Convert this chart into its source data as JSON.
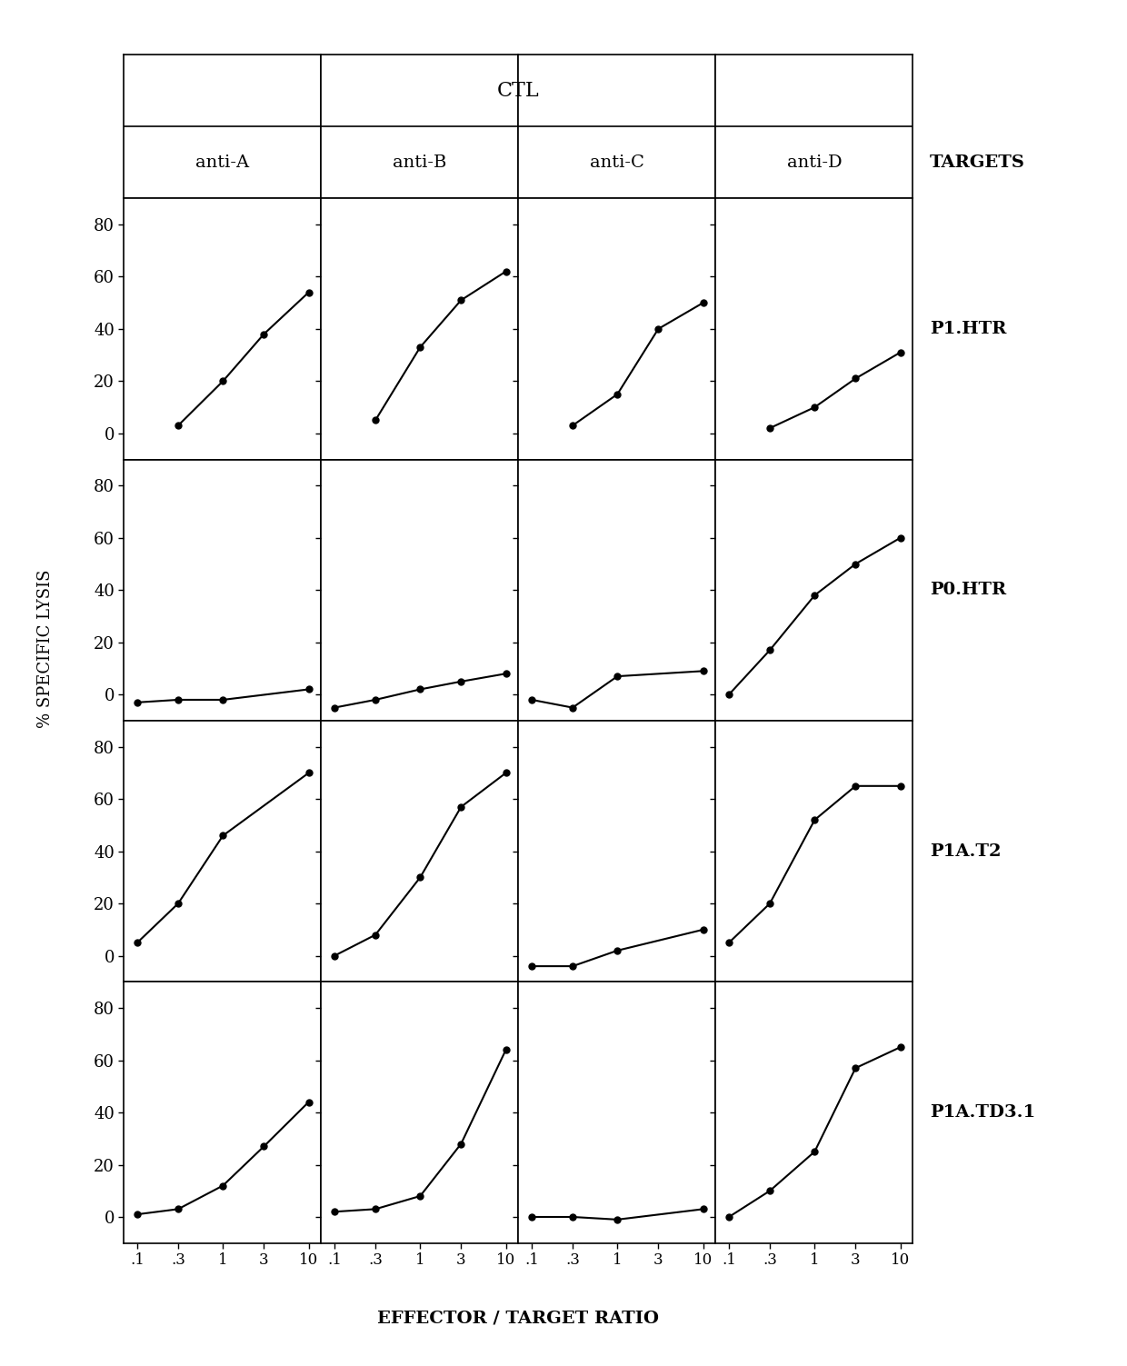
{
  "rows": [
    "P1.HTR",
    "P0.HTR",
    "P1A.T2",
    "P1A.TD3.1"
  ],
  "cols": [
    "anti-A",
    "anti-B",
    "anti-C",
    "anti-D"
  ],
  "x_ticks": [
    0.1,
    0.3,
    1,
    3,
    10
  ],
  "x_tick_labels": [
    ".1",
    ".3",
    "1",
    "3",
    "10"
  ],
  "ylim": [
    -10,
    90
  ],
  "yticks": [
    0,
    20,
    40,
    60,
    80
  ],
  "data": {
    "P1.HTR": {
      "anti-A": {
        "x": [
          0.3,
          1,
          3,
          10
        ],
        "y": [
          3,
          20,
          38,
          54
        ]
      },
      "anti-B": {
        "x": [
          0.3,
          1,
          3,
          10
        ],
        "y": [
          5,
          33,
          51,
          62
        ]
      },
      "anti-C": {
        "x": [
          0.3,
          1,
          3,
          10
        ],
        "y": [
          3,
          15,
          40,
          50
        ]
      },
      "anti-D": {
        "x": [
          0.3,
          1,
          3,
          10
        ],
        "y": [
          2,
          10,
          21,
          31
        ]
      }
    },
    "P0.HTR": {
      "anti-A": {
        "x": [
          0.1,
          0.3,
          1,
          10
        ],
        "y": [
          -3,
          -2,
          -2,
          2
        ]
      },
      "anti-B": {
        "x": [
          0.1,
          0.3,
          1,
          3,
          10
        ],
        "y": [
          -5,
          -2,
          2,
          5,
          8
        ]
      },
      "anti-C": {
        "x": [
          0.1,
          0.3,
          1,
          10
        ],
        "y": [
          -2,
          -5,
          7,
          9
        ]
      },
      "anti-D": {
        "x": [
          0.1,
          0.3,
          1,
          3,
          10
        ],
        "y": [
          0,
          17,
          38,
          50,
          60
        ]
      }
    },
    "P1A.T2": {
      "anti-A": {
        "x": [
          0.1,
          0.3,
          1,
          10
        ],
        "y": [
          5,
          20,
          46,
          70
        ]
      },
      "anti-B": {
        "x": [
          0.1,
          0.3,
          1,
          3,
          10
        ],
        "y": [
          0,
          8,
          30,
          57,
          70
        ]
      },
      "anti-C": {
        "x": [
          0.1,
          0.3,
          1,
          10
        ],
        "y": [
          -4,
          -4,
          2,
          10
        ]
      },
      "anti-D": {
        "x": [
          0.1,
          0.3,
          1,
          3,
          10
        ],
        "y": [
          5,
          20,
          52,
          65,
          65
        ]
      }
    },
    "P1A.TD3.1": {
      "anti-A": {
        "x": [
          0.1,
          0.3,
          1,
          3,
          10
        ],
        "y": [
          1,
          3,
          12,
          27,
          44
        ]
      },
      "anti-B": {
        "x": [
          0.1,
          0.3,
          1,
          3,
          10
        ],
        "y": [
          2,
          3,
          8,
          28,
          64
        ]
      },
      "anti-C": {
        "x": [
          0.1,
          0.3,
          1,
          10
        ],
        "y": [
          0,
          0,
          -1,
          3
        ]
      },
      "anti-D": {
        "x": [
          0.1,
          0.3,
          1,
          3,
          10
        ],
        "y": [
          0,
          10,
          25,
          57,
          65
        ]
      }
    }
  },
  "title": "CTL",
  "xlabel": "EFFECTOR / TARGET RATIO",
  "ylabel": "% SPECIFIC LYSIS",
  "right_labels": [
    "TARGETS",
    "P1.HTR",
    "P0.HTR",
    "P1A.T2",
    "P1A.TD3.1"
  ],
  "col_labels": [
    "anti-A",
    "anti-B",
    "anti-C",
    "anti-D"
  ],
  "background_color": "#ffffff",
  "line_color": "#000000",
  "marker": "o",
  "markersize": 5,
  "linewidth": 1.5
}
